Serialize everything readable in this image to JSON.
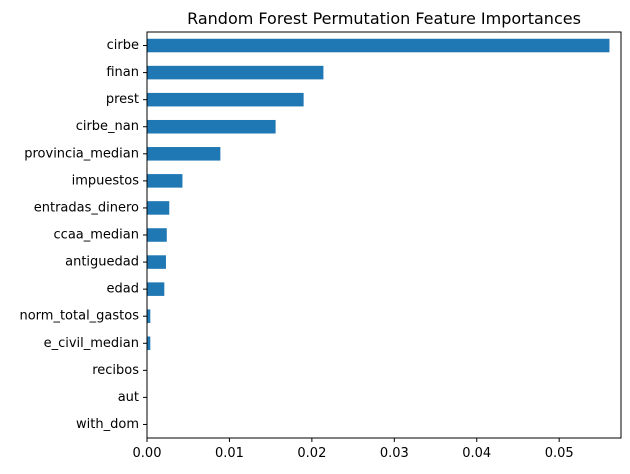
{
  "chart_data": {
    "type": "bar",
    "orientation": "horizontal",
    "title": "Random Forest Permutation Feature Importances",
    "xlabel": "",
    "ylabel": "",
    "categories": [
      "cirbe",
      "finan",
      "prest",
      "cirbe_nan",
      "provincia_median",
      "impuestos",
      "entradas_dinero",
      "ccaa_median",
      "antiguedad",
      "edad",
      "norm_total_gastos",
      "e_civil_median",
      "recibos",
      "aut",
      "with_dom"
    ],
    "values": [
      0.0561,
      0.0214,
      0.019,
      0.0156,
      0.0089,
      0.0043,
      0.0027,
      0.0024,
      0.0023,
      0.0021,
      0.0004,
      0.0004,
      0.0,
      0.0,
      0.0
    ],
    "xlim": [
      0.0,
      0.0575
    ],
    "xticks": [
      0.0,
      0.01,
      0.02,
      0.03,
      0.04,
      0.05
    ],
    "xtick_labels": [
      "0.00",
      "0.01",
      "0.02",
      "0.03",
      "0.04",
      "0.05"
    ],
    "grid": false,
    "legend": "none",
    "bar_color": "#1f77b4"
  }
}
